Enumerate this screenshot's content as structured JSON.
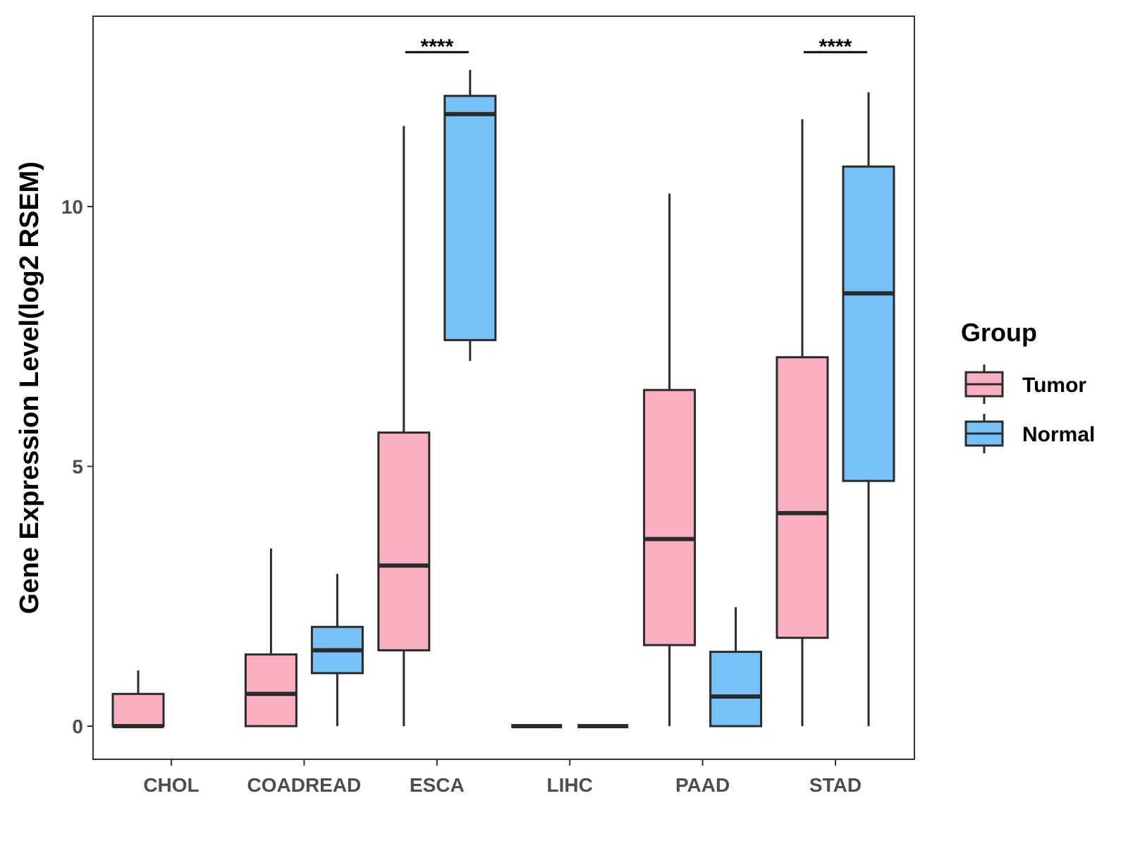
{
  "chart_data": {
    "type": "boxplot",
    "title": "",
    "xlabel": "",
    "ylabel": "Gene Expression Level(log2 RSEM)",
    "ylim": [
      -0.65,
      13.7
    ],
    "yticks": [
      0,
      5,
      10
    ],
    "ytick_labels": [
      "0",
      "5",
      "10"
    ],
    "grid": false,
    "categories": [
      "CHOL",
      "COADREAD",
      "ESCA",
      "LIHC",
      "PAAD",
      "STAD"
    ],
    "legend": {
      "title": "Group",
      "position": "right",
      "entries": [
        {
          "name": "Tumor",
          "color": "#FBAFC1"
        },
        {
          "name": "Normal",
          "color": "#76C1F8"
        }
      ]
    },
    "series": [
      {
        "name": "Tumor",
        "color": "#FBAFC1",
        "boxes": [
          {
            "category": "CHOL",
            "min": 0,
            "q1": 0,
            "median": 0,
            "q3": 0.62,
            "max": 1.07
          },
          {
            "category": "COADREAD",
            "min": 0,
            "q1": 0,
            "median": 0.62,
            "q3": 1.38,
            "max": 3.42
          },
          {
            "category": "ESCA",
            "min": 0,
            "q1": 1.46,
            "median": 3.09,
            "q3": 5.65,
            "max": 11.55
          },
          {
            "category": "LIHC",
            "min": 0,
            "q1": 0,
            "median": 0,
            "q3": 0,
            "max": 0
          },
          {
            "category": "PAAD",
            "min": 0,
            "q1": 1.56,
            "median": 3.6,
            "q3": 6.47,
            "max": 10.25
          },
          {
            "category": "STAD",
            "min": 0,
            "q1": 1.7,
            "median": 4.1,
            "q3": 7.1,
            "max": 11.68
          }
        ]
      },
      {
        "name": "Normal",
        "color": "#76C1F8",
        "boxes": [
          {
            "category": "CHOL",
            "empty": true
          },
          {
            "category": "COADREAD",
            "min": 0,
            "q1": 1.02,
            "median": 1.46,
            "q3": 1.91,
            "max": 2.93
          },
          {
            "category": "ESCA",
            "min": 7.03,
            "q1": 7.43,
            "median": 11.78,
            "q3": 12.13,
            "max": 12.63
          },
          {
            "category": "LIHC",
            "min": 0,
            "q1": 0,
            "median": 0,
            "q3": 0,
            "max": 0
          },
          {
            "category": "PAAD",
            "min": 0,
            "q1": 0,
            "median": 0.57,
            "q3": 1.43,
            "max": 2.29
          },
          {
            "category": "STAD",
            "min": 0,
            "q1": 4.72,
            "median": 8.33,
            "q3": 10.77,
            "max": 12.2
          }
        ]
      }
    ],
    "annotations": [
      {
        "category": "ESCA",
        "label": "****"
      },
      {
        "category": "STAD",
        "label": "****"
      }
    ]
  }
}
